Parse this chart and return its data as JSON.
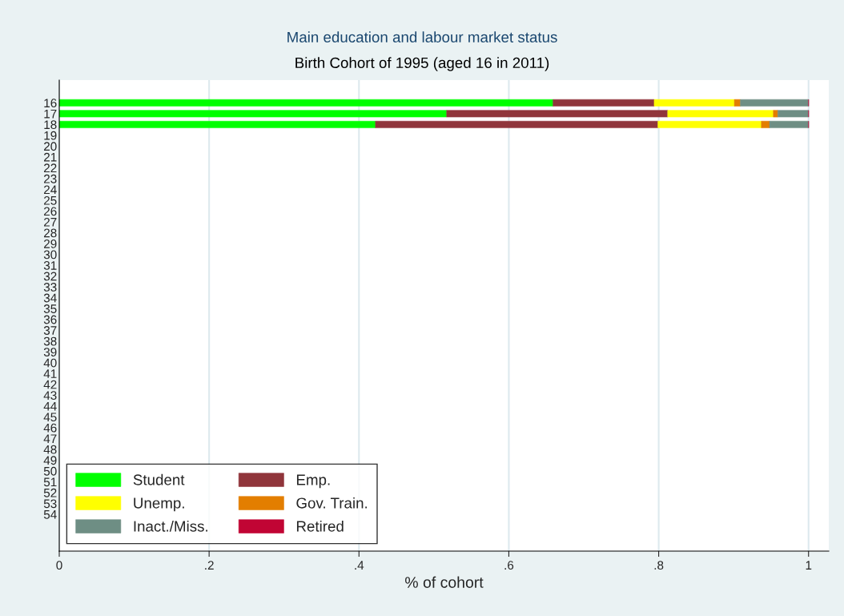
{
  "chart_data": {
    "type": "bar",
    "orientation": "horizontal",
    "stacked": true,
    "title": "Main education and labour market status",
    "subtitle": "Birth Cohort of 1995 (aged 16 in 2011)",
    "xlabel": "% of cohort",
    "categories": [
      "16",
      "17",
      "18",
      "19",
      "20",
      "21",
      "22",
      "23",
      "24",
      "25",
      "26",
      "27",
      "28",
      "29",
      "30",
      "31",
      "32",
      "33",
      "34",
      "35",
      "36",
      "37",
      "38",
      "39",
      "40",
      "41",
      "42",
      "43",
      "44",
      "45",
      "46",
      "47",
      "48",
      "49",
      "50",
      "51",
      "52",
      "53",
      "54"
    ],
    "series": [
      {
        "name": "Student",
        "color": "#00ff00",
        "values": [
          0.659,
          0.517,
          0.422,
          null,
          null,
          null,
          null,
          null,
          null,
          null,
          null,
          null,
          null,
          null,
          null,
          null,
          null,
          null,
          null,
          null,
          null,
          null,
          null,
          null,
          null,
          null,
          null,
          null,
          null,
          null,
          null,
          null,
          null,
          null,
          null,
          null,
          null,
          null,
          null
        ]
      },
      {
        "name": "Emp.",
        "color": "#90353b",
        "values": [
          0.135,
          0.295,
          0.377,
          null,
          null,
          null,
          null,
          null,
          null,
          null,
          null,
          null,
          null,
          null,
          null,
          null,
          null,
          null,
          null,
          null,
          null,
          null,
          null,
          null,
          null,
          null,
          null,
          null,
          null,
          null,
          null,
          null,
          null,
          null,
          null,
          null,
          null,
          null,
          null
        ]
      },
      {
        "name": "Unemp.",
        "color": "#ffff00",
        "values": [
          0.107,
          0.141,
          0.138,
          null,
          null,
          null,
          null,
          null,
          null,
          null,
          null,
          null,
          null,
          null,
          null,
          null,
          null,
          null,
          null,
          null,
          null,
          null,
          null,
          null,
          null,
          null,
          null,
          null,
          null,
          null,
          null,
          null,
          null,
          null,
          null,
          null,
          null,
          null,
          null
        ]
      },
      {
        "name": "Gov. Train.",
        "color": "#e37e00",
        "values": [
          0.008,
          0.006,
          0.011,
          null,
          null,
          null,
          null,
          null,
          null,
          null,
          null,
          null,
          null,
          null,
          null,
          null,
          null,
          null,
          null,
          null,
          null,
          null,
          null,
          null,
          null,
          null,
          null,
          null,
          null,
          null,
          null,
          null,
          null,
          null,
          null,
          null,
          null,
          null,
          null
        ]
      },
      {
        "name": "Inact./Miss.",
        "color": "#6e8e84",
        "values": [
          0.091,
          0.041,
          0.052,
          null,
          null,
          null,
          null,
          null,
          null,
          null,
          null,
          null,
          null,
          null,
          null,
          null,
          null,
          null,
          null,
          null,
          null,
          null,
          null,
          null,
          null,
          null,
          null,
          null,
          null,
          null,
          null,
          null,
          null,
          null,
          null,
          null,
          null,
          null,
          null
        ]
      },
      {
        "name": "Retired",
        "color": "#c10534",
        "values": [
          0,
          0,
          0,
          null,
          null,
          null,
          null,
          null,
          null,
          null,
          null,
          null,
          null,
          null,
          null,
          null,
          null,
          null,
          null,
          null,
          null,
          null,
          null,
          null,
          null,
          null,
          null,
          null,
          null,
          null,
          null,
          null,
          null,
          null,
          null,
          null,
          null,
          null,
          null
        ]
      }
    ],
    "xlim": [
      0,
      1.027
    ],
    "xticks": [
      0,
      {
        "value": 0.2,
        "label": ".2"
      },
      {
        "value": 0.4,
        "label": ".4"
      },
      {
        "value": 0.6,
        "label": ".6"
      },
      {
        "value": 0.8,
        "label": ".8"
      },
      1
    ],
    "grid": "x",
    "legend": "bottom left"
  }
}
